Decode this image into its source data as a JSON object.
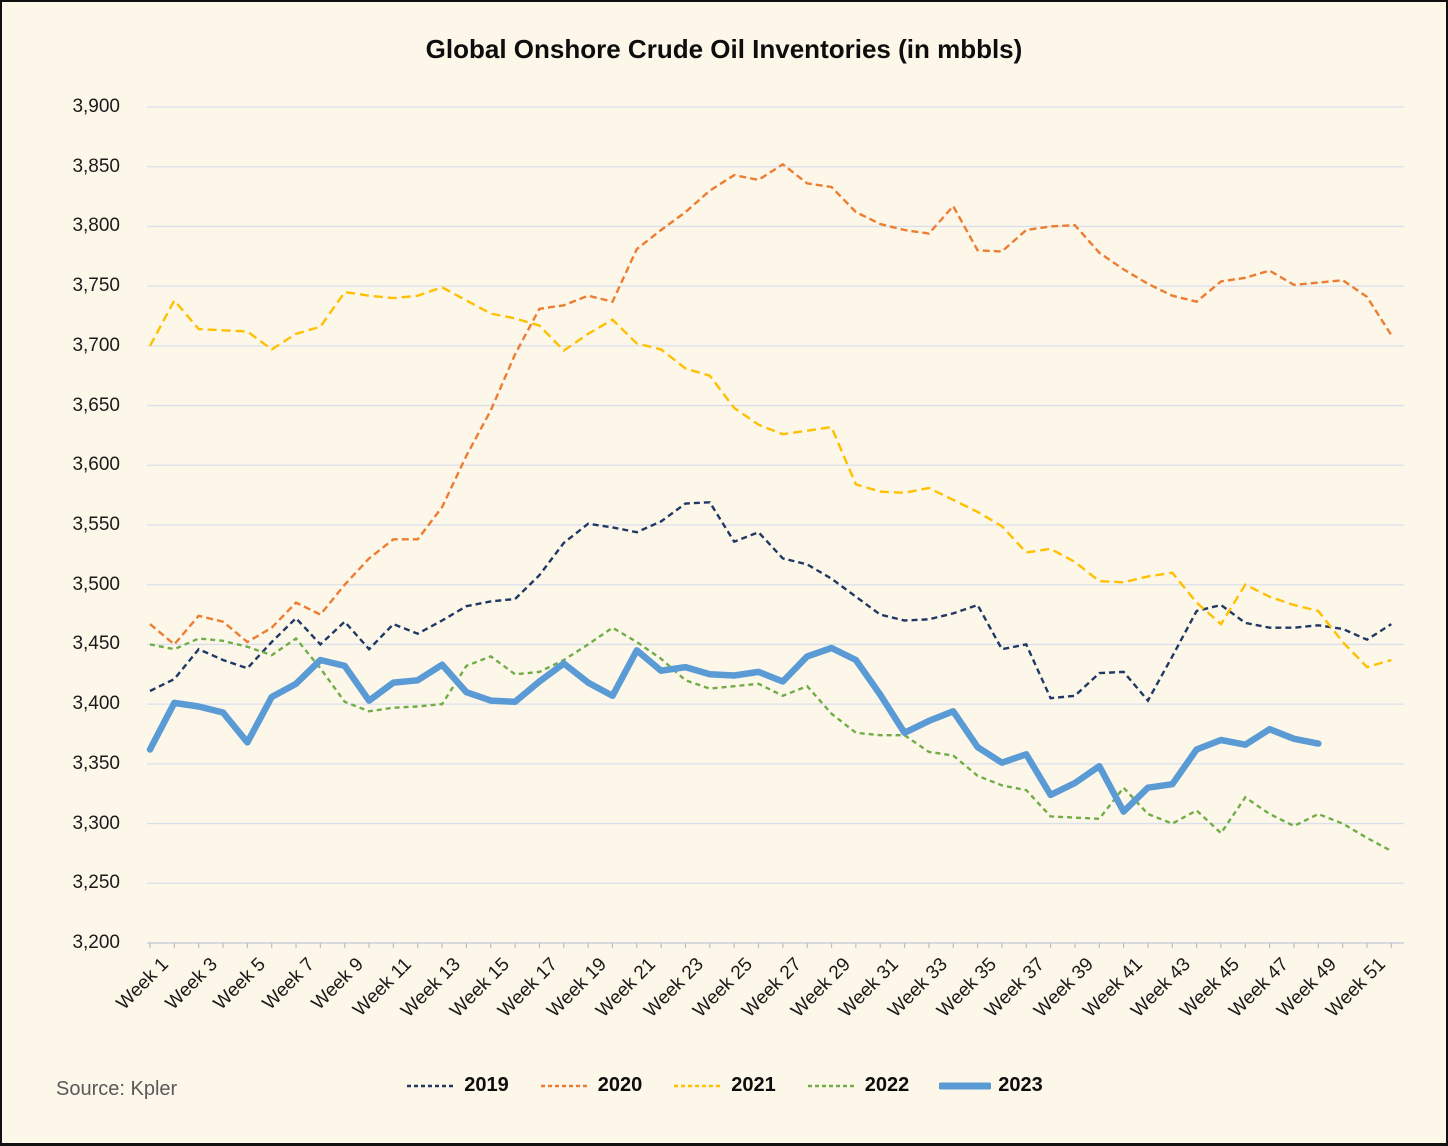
{
  "title": "Global Onshore Crude Oil Inventories (in mbbls)",
  "source": "Source: Kpler",
  "colors": {
    "background": "#FDF7EA",
    "gridline": "#D9E0EC",
    "axis_line": "#C9CFDA",
    "tick": "#B9BfC9",
    "text": "#1a1a1a"
  },
  "chart_data": {
    "type": "line",
    "title": "Global Onshore Crude Oil Inventories (in mbbls)",
    "xlabel": "",
    "ylabel": "",
    "ylim": [
      3200,
      3900
    ],
    "ytick_step": 50,
    "grid": true,
    "legend_position": "bottom",
    "y_tick_labels": [
      "3,900",
      "3,850",
      "3,800",
      "3,750",
      "3,700",
      "3,650",
      "3,600",
      "3,550",
      "3,500",
      "3,450",
      "3,400",
      "3,350",
      "3,300",
      "3,250",
      "3,200"
    ],
    "x_tick_labels": [
      "Week 1",
      "Week 3",
      "Week 5",
      "Week 7",
      "Week 9",
      "Week 11",
      "Week 13",
      "Week 15",
      "Week 17",
      "Week 19",
      "Week 21",
      "Week 23",
      "Week 25",
      "Week 27",
      "Week 29",
      "Week 31",
      "Week 33",
      "Week 35",
      "Week 37",
      "Week 39",
      "Week 41",
      "Week 43",
      "Week 45",
      "Week 47",
      "Week 49",
      "Week 51"
    ],
    "weeks_total": 52,
    "series": [
      {
        "name": "2019",
        "color": "#1F3864",
        "style": "dashed",
        "values": [
          3411,
          3421,
          3446,
          3437,
          3430,
          3452,
          3472,
          3450,
          3469,
          3446,
          3467,
          3459,
          3470,
          3482,
          3486,
          3488,
          3508,
          3535,
          3551,
          3548,
          3544,
          3553,
          3568,
          3569,
          3536,
          3544,
          3522,
          3517,
          3505,
          3490,
          3475,
          3470,
          3471,
          3476,
          3483,
          3446,
          3450,
          3405,
          3407,
          3426,
          3427,
          3403,
          3440,
          3478,
          3483,
          3468,
          3464,
          3464,
          3466,
          3463,
          3454,
          3467
        ]
      },
      {
        "name": "2020",
        "color": "#ED7D31",
        "style": "dashed",
        "values": [
          3467,
          3450,
          3474,
          3469,
          3452,
          3464,
          3485,
          3475,
          3500,
          3522,
          3538,
          3538,
          3565,
          3608,
          3646,
          3693,
          3731,
          3734,
          3742,
          3737,
          3781,
          3797,
          3812,
          3830,
          3843,
          3839,
          3852,
          3836,
          3833,
          3812,
          3802,
          3797,
          3794,
          3817,
          3780,
          3779,
          3797,
          3800,
          3801,
          3778,
          3764,
          3752,
          3742,
          3737,
          3754,
          3757,
          3763,
          3751,
          3753,
          3755,
          3741,
          3709
        ]
      },
      {
        "name": "2021",
        "color": "#FFC000",
        "style": "dashed",
        "values": [
          3700,
          3738,
          3714,
          3713,
          3712,
          3697,
          3710,
          3716,
          3745,
          3742,
          3740,
          3742,
          3749,
          3738,
          3727,
          3723,
          3717,
          3696,
          3710,
          3722,
          3702,
          3697,
          3681,
          3675,
          3648,
          3634,
          3626,
          3629,
          3632,
          3584,
          3578,
          3577,
          3581,
          3571,
          3561,
          3549,
          3527,
          3530,
          3519,
          3503,
          3502,
          3507,
          3510,
          3485,
          3467,
          3500,
          3490,
          3483,
          3478,
          3452,
          3431,
          3437
        ]
      },
      {
        "name": "2022",
        "color": "#70AD47",
        "style": "dashed",
        "values": [
          3450,
          3446,
          3455,
          3453,
          3448,
          3441,
          3455,
          3430,
          3402,
          3394,
          3397,
          3398,
          3400,
          3432,
          3440,
          3425,
          3427,
          3437,
          3450,
          3464,
          3452,
          3438,
          3420,
          3413,
          3415,
          3417,
          3407,
          3415,
          3392,
          3376,
          3374,
          3374,
          3360,
          3357,
          3340,
          3332,
          3328,
          3306,
          3305,
          3304,
          3330,
          3308,
          3300,
          3311,
          3292,
          3322,
          3308,
          3298,
          3308,
          3300,
          3288,
          3277
        ]
      },
      {
        "name": "2023",
        "color": "#5B9BD5",
        "style": "solid-thick",
        "values": [
          3362,
          3401,
          3398,
          3393,
          3368,
          3406,
          3417,
          3437,
          3432,
          3403,
          3418,
          3420,
          3433,
          3410,
          3403,
          3402,
          3419,
          3434,
          3418,
          3407,
          3445,
          3428,
          3431,
          3425,
          3424,
          3427,
          3419,
          3440,
          3447,
          3437,
          3408,
          3376,
          3386,
          3394,
          3364,
          3351,
          3358,
          3324,
          3334,
          3348,
          3310,
          3330,
          3333,
          3362,
          3370,
          3366,
          3379,
          3371,
          3367
        ]
      }
    ]
  }
}
